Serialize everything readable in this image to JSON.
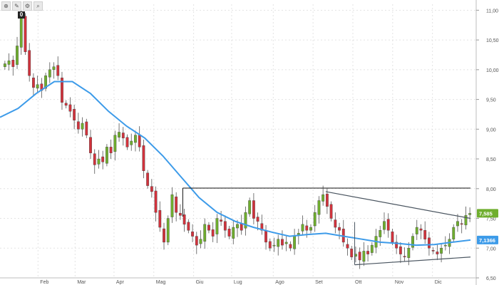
{
  "toolbar": {
    "icons": [
      "cursor-icon",
      "draw-icon",
      "settings-icon",
      "zoom-icon"
    ],
    "glyphs": [
      "⊕",
      "✎",
      "⚙",
      "⌕"
    ],
    "badge": "0"
  },
  "chart_data": {
    "type": "candlestick",
    "title": "",
    "xlabel": "",
    "ylabel": "",
    "ylim": [
      6.5,
      11.1
    ],
    "y_ticks": [
      "6,50",
      "7,00",
      "7,50",
      "8,00",
      "8,50",
      "9,00",
      "9,50",
      "10,00",
      "10,50",
      "11,00"
    ],
    "x_ticks": [
      {
        "label": "Feb",
        "week": 4.2
      },
      {
        "label": "Mar",
        "week": 8.3
      },
      {
        "label": "Apr",
        "week": 12.6
      },
      {
        "label": "Mag",
        "week": 17.0
      },
      {
        "label": "Giu",
        "week": 21.4
      },
      {
        "label": "Lug",
        "week": 25.6
      },
      {
        "label": "Ago",
        "week": 30.2
      },
      {
        "label": "Set",
        "week": 34.6
      },
      {
        "label": "Ott",
        "week": 39.0
      },
      {
        "label": "Nov",
        "week": 43.4
      },
      {
        "label": "Dic",
        "week": 47.8
      }
    ],
    "week_range": [
      0,
      52
    ],
    "grid": true,
    "price_label": "7,585",
    "ma_label": "7,1366",
    "colors": {
      "up": "#6fae2e",
      "down": "#d2323c",
      "ma": "#3d9be9",
      "trend": "#4a5560",
      "resistance": "#111111",
      "price_tag": "#6fae2e",
      "ma_tag": "#3d9be9"
    },
    "closes": [
      10.1,
      10.15,
      10.05,
      10.4,
      10.9,
      10.3,
      9.9,
      9.7,
      9.75,
      9.65,
      9.9,
      10.0,
      10.05,
      9.9,
      9.45,
      9.4,
      9.3,
      9.15,
      9.0,
      9.1,
      8.9,
      8.6,
      8.4,
      8.5,
      8.45,
      8.7,
      8.6,
      8.9,
      8.95,
      8.85,
      8.7,
      8.8,
      8.9,
      8.7,
      8.3,
      8.05,
      7.95,
      7.6,
      7.35,
      7.1,
      7.5,
      7.9,
      7.6,
      7.55,
      7.4,
      7.3,
      7.2,
      7.05,
      7.15,
      7.4,
      7.3,
      7.2,
      7.5,
      7.45,
      7.3,
      7.2,
      7.35,
      7.4,
      7.3,
      7.6,
      7.8,
      7.5,
      7.45,
      7.3,
      7.1,
      7.0,
      7.05,
      7.15,
      7.05,
      7.1,
      7.0,
      7.2,
      7.25,
      7.4,
      7.3,
      7.35,
      7.6,
      7.8,
      7.9,
      7.7,
      7.5,
      7.35,
      7.3,
      7.1,
      7.0,
      6.85,
      6.9,
      6.8,
      6.95,
      6.9,
      7.05,
      7.2,
      7.3,
      7.45,
      7.3,
      7.1,
      7.0,
      6.9,
      6.85,
      7.0,
      7.2,
      7.35,
      7.3,
      7.15,
      7.0,
      6.95,
      6.9,
      7.0,
      7.05,
      7.15,
      7.35,
      7.45,
      7.4,
      7.55,
      7.585
    ],
    "moving_average": [
      {
        "week": 0,
        "value": 9.2
      },
      {
        "week": 2,
        "value": 9.35
      },
      {
        "week": 4,
        "value": 9.6
      },
      {
        "week": 6,
        "value": 9.8
      },
      {
        "week": 8,
        "value": 9.8
      },
      {
        "week": 10,
        "value": 9.6
      },
      {
        "week": 12,
        "value": 9.3
      },
      {
        "week": 14,
        "value": 9.05
      },
      {
        "week": 16,
        "value": 8.85
      },
      {
        "week": 18,
        "value": 8.55
      },
      {
        "week": 20,
        "value": 8.2
      },
      {
        "week": 22,
        "value": 7.85
      },
      {
        "week": 24,
        "value": 7.6
      },
      {
        "week": 26,
        "value": 7.45
      },
      {
        "week": 28,
        "value": 7.35
      },
      {
        "week": 30,
        "value": 7.27
      },
      {
        "week": 32,
        "value": 7.2
      },
      {
        "week": 34,
        "value": 7.23
      },
      {
        "week": 36,
        "value": 7.25
      },
      {
        "week": 38,
        "value": 7.2
      },
      {
        "week": 40,
        "value": 7.15
      },
      {
        "week": 42,
        "value": 7.1
      },
      {
        "week": 44,
        "value": 7.08
      },
      {
        "week": 46,
        "value": 7.05
      },
      {
        "week": 48,
        "value": 7.06
      },
      {
        "week": 50,
        "value": 7.1
      },
      {
        "week": 52,
        "value": 7.1366
      }
    ],
    "resistance": {
      "y": 8.01,
      "week_start": 20.2,
      "week_end": 52
    },
    "trend_upper": [
      {
        "week": 36,
        "value": 7.95
      },
      {
        "week": 52,
        "value": 7.5
      }
    ],
    "trend_lower": [
      {
        "week": 39.2,
        "value": 6.72
      },
      {
        "week": 52,
        "value": 6.85
      }
    ]
  }
}
